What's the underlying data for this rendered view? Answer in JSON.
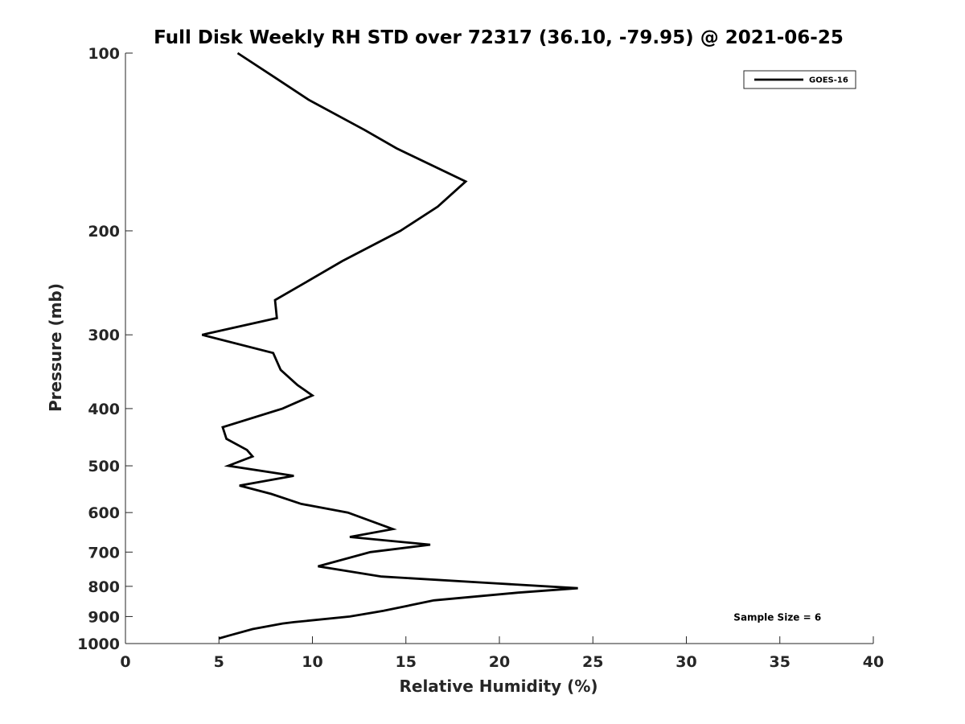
{
  "chart_data": {
    "type": "line",
    "title": "Full Disk Weekly RH STD over 72317 (36.10, -79.95) @ 2021-06-25",
    "xlabel": "Relative Humidity (%)",
    "ylabel": "Pressure (mb)",
    "xlim": [
      0,
      40
    ],
    "ylim": [
      1000,
      100
    ],
    "y_scale": "log",
    "x_ticks": [
      0,
      5,
      10,
      15,
      20,
      25,
      30,
      35,
      40
    ],
    "y_ticks": [
      100,
      200,
      300,
      400,
      500,
      600,
      700,
      800,
      900,
      1000
    ],
    "grid": false,
    "legend_position": "top-right",
    "series": [
      {
        "name": "GOES-16",
        "color": "#000000",
        "points": [
          [
            6.0,
            100
          ],
          [
            8.0,
            110
          ],
          [
            9.8,
            120
          ],
          [
            12.8,
            135
          ],
          [
            14.5,
            145
          ],
          [
            18.2,
            165
          ],
          [
            16.7,
            182
          ],
          [
            14.7,
            200
          ],
          [
            11.6,
            225
          ],
          [
            9.6,
            245
          ],
          [
            8.0,
            262
          ],
          [
            8.1,
            281
          ],
          [
            4.1,
            300
          ],
          [
            7.9,
            322
          ],
          [
            8.3,
            344
          ],
          [
            9.2,
            365
          ],
          [
            10.0,
            380
          ],
          [
            8.4,
            400
          ],
          [
            5.2,
            430
          ],
          [
            5.4,
            450
          ],
          [
            6.5,
            470
          ],
          [
            6.8,
            482
          ],
          [
            5.5,
            500
          ],
          [
            9.0,
            520
          ],
          [
            6.1,
            540
          ],
          [
            7.8,
            558
          ],
          [
            9.4,
            580
          ],
          [
            11.9,
            600
          ],
          [
            14.3,
            640
          ],
          [
            12.0,
            660
          ],
          [
            16.3,
            680
          ],
          [
            13.1,
            700
          ],
          [
            10.3,
            740
          ],
          [
            13.7,
            770
          ],
          [
            19.6,
            790
          ],
          [
            24.2,
            806
          ],
          [
            21.0,
            820
          ],
          [
            16.5,
            845
          ],
          [
            14.8,
            867
          ],
          [
            13.8,
            880
          ],
          [
            12.0,
            900
          ],
          [
            9.0,
            920
          ],
          [
            8.4,
            925
          ],
          [
            6.8,
            945
          ],
          [
            5.5,
            970
          ],
          [
            5.0,
            980
          ]
        ]
      }
    ],
    "annotations": [
      {
        "text": "Sample Size = 6",
        "x": 35,
        "y": 900
      }
    ]
  }
}
